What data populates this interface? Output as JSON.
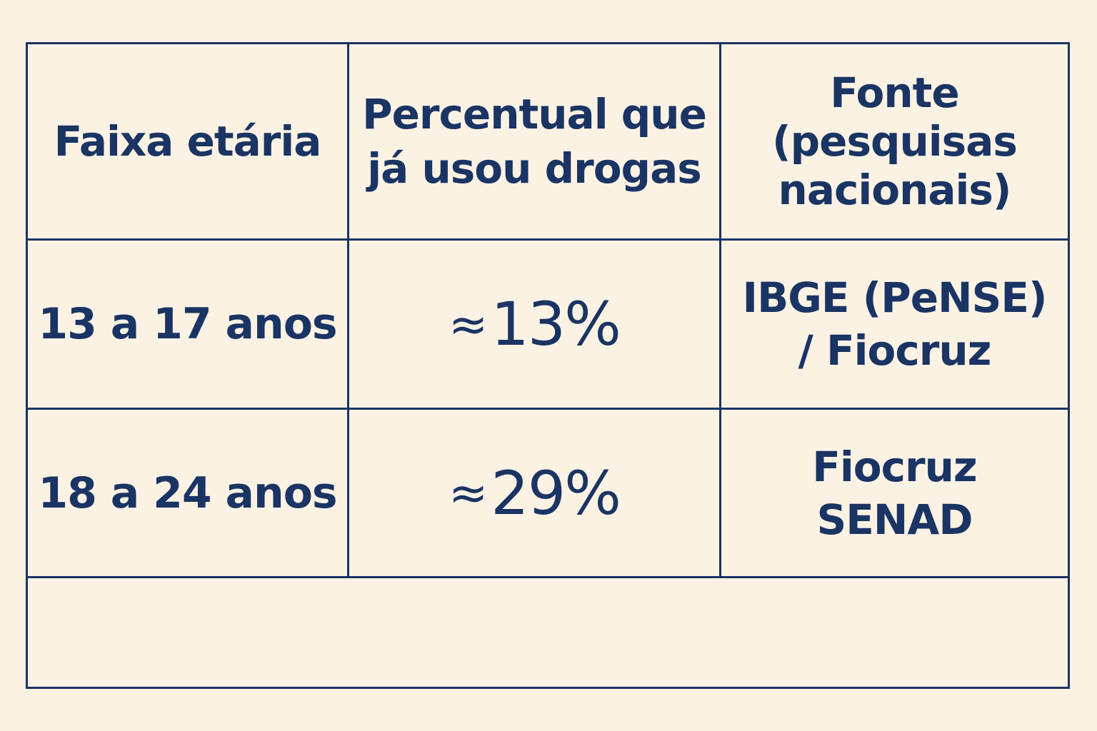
{
  "table": {
    "headers": {
      "age_group": "Faixa etária",
      "percent_line1": "Percentual que",
      "percent_line2": "já usou drogas",
      "source_line1": "Fonte",
      "source_line2": "(pesquisas",
      "source_line3": "nacionais)"
    },
    "rows": [
      {
        "age_group": "13 a 17 anos",
        "approx_symbol": "≈",
        "percent": "13%",
        "source_line1": "IBGE (PeNSE)",
        "source_line2": "/ Fiocruz"
      },
      {
        "age_group": "18 a 24 anos",
        "approx_symbol": "≈",
        "percent": "29%",
        "source_line1": "Fiocruz",
        "source_line2": "SENAD"
      }
    ]
  },
  "colors": {
    "background": "#fcf2e4",
    "ink": "#1a3463"
  }
}
